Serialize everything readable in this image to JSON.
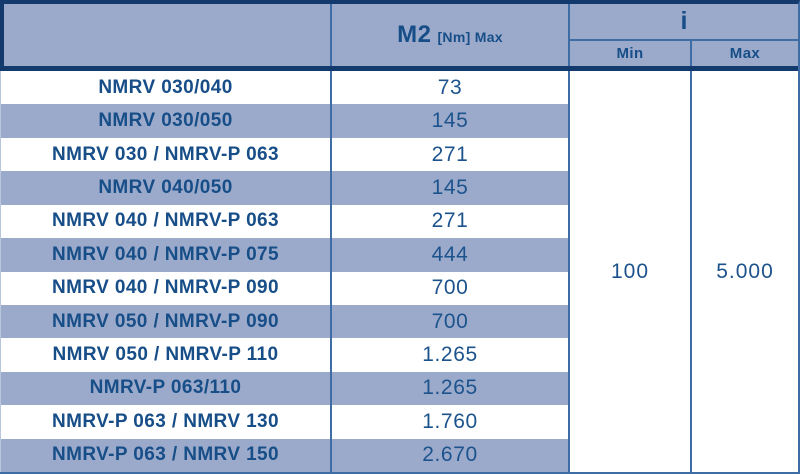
{
  "colors": {
    "periwinkle": "#9BAACB",
    "navy": "#123A6C",
    "line": "#3D6DA4",
    "text": "#174E88",
    "value-text": "#1D538D"
  },
  "header": {
    "m2_main": "M2",
    "m2_sub": "[Nm] Max",
    "i_label": "i",
    "min_label": "Min",
    "max_label": "Max"
  },
  "rows": [
    {
      "model": "NMRV 030/040",
      "m2": "73"
    },
    {
      "model": "NMRV 030/050",
      "m2": "145"
    },
    {
      "model": "NMRV 030 / NMRV-P 063",
      "m2": "271"
    },
    {
      "model": "NMRV 040/050",
      "m2": "145"
    },
    {
      "model": "NMRV 040 / NMRV-P 063",
      "m2": "271"
    },
    {
      "model": "NMRV 040 / NMRV-P 075",
      "m2": "444"
    },
    {
      "model": "NMRV 040 / NMRV-P 090",
      "m2": "700"
    },
    {
      "model": "NMRV 050 / NMRV-P 090",
      "m2": "700"
    },
    {
      "model": "NMRV 050 / NMRV-P 110",
      "m2": "1.265"
    },
    {
      "model": "NMRV-P 063/110",
      "m2": "1.265"
    },
    {
      "model": "NMRV-P 063 / NMRV 130",
      "m2": "1.760"
    },
    {
      "model": "NMRV-P 063 / NMRV 150",
      "m2": "2.670"
    }
  ],
  "i_range": {
    "min": "100",
    "max": "5.000"
  }
}
